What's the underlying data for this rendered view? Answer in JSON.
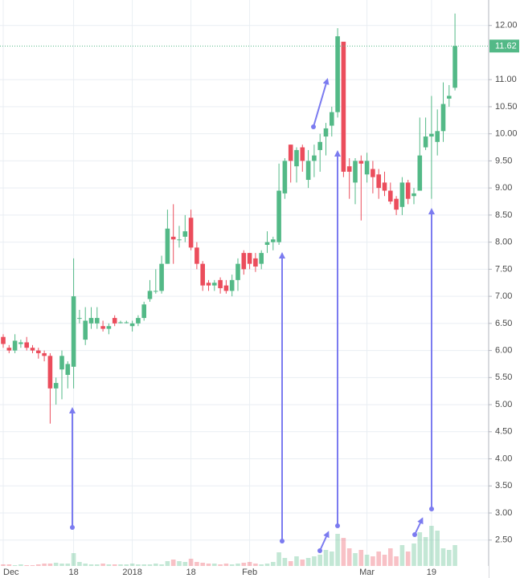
{
  "chart_data": {
    "type": "candlestick",
    "categories": [
      "Dec",
      null,
      null,
      null,
      null,
      null,
      null,
      null,
      null,
      null,
      null,
      null,
      "18",
      null,
      null,
      null,
      null,
      null,
      null,
      null,
      null,
      null,
      "2018",
      null,
      null,
      null,
      null,
      null,
      null,
      null,
      null,
      null,
      "18",
      null,
      null,
      null,
      null,
      null,
      null,
      null,
      null,
      null,
      "Feb",
      null,
      null,
      null,
      null,
      null,
      null,
      null,
      null,
      null,
      null,
      null,
      null,
      null,
      null,
      null,
      null,
      null,
      null,
      null,
      "Mar",
      null,
      null,
      null,
      null,
      null,
      null,
      null,
      null,
      null,
      null,
      "19",
      null,
      null,
      null,
      null
    ],
    "open": [
      6.25,
      6.05,
      6.0,
      6.12,
      6.15,
      6.05,
      6.0,
      5.95,
      5.9,
      5.3,
      5.65,
      5.55,
      5.7,
      6.6,
      6.2,
      6.5,
      6.5,
      6.45,
      6.4,
      6.6,
      6.52,
      6.52,
      6.45,
      6.5,
      6.6,
      6.95,
      7.1,
      7.1,
      7.6,
      8.1,
      8.05,
      8.1,
      8.45,
      7.9,
      7.6,
      7.25,
      7.2,
      7.3,
      7.2,
      7.1,
      7.3,
      7.8,
      7.8,
      7.7,
      7.6,
      7.95,
      8.0,
      8.0,
      8.9,
      9.8,
      9.4,
      9.75,
      9.15,
      9.5,
      9.7,
      9.95,
      10.15,
      10.4,
      11.7,
      9.4,
      9.1,
      9.5,
      9.25,
      9.35,
      9.25,
      9.1,
      8.95,
      8.8,
      8.65,
      9.1,
      8.85,
      8.95,
      9.75,
      9.95,
      9.85,
      10.05,
      10.65,
      10.85
    ],
    "high": [
      6.3,
      6.1,
      6.3,
      6.2,
      6.25,
      6.1,
      6.05,
      6.0,
      5.95,
      5.5,
      6.0,
      5.8,
      7.7,
      6.75,
      6.8,
      6.8,
      6.8,
      6.55,
      6.5,
      6.65,
      6.55,
      6.55,
      6.55,
      6.65,
      6.9,
      7.3,
      7.5,
      7.75,
      8.6,
      8.7,
      8.3,
      8.5,
      8.6,
      8.0,
      7.65,
      7.3,
      7.3,
      7.35,
      7.3,
      7.4,
      7.7,
      7.85,
      7.8,
      7.8,
      7.85,
      8.2,
      8.1,
      9.45,
      9.55,
      9.8,
      9.75,
      9.8,
      9.7,
      9.8,
      10.0,
      10.2,
      10.5,
      11.95,
      11.7,
      9.55,
      9.55,
      9.6,
      9.65,
      9.5,
      9.35,
      9.3,
      9.1,
      8.85,
      9.2,
      9.15,
      9.0,
      10.3,
      10.3,
      10.7,
      10.45,
      10.95,
      10.9,
      12.22
    ],
    "low": [
      6.05,
      5.95,
      5.95,
      6.05,
      6.0,
      5.95,
      5.85,
      5.8,
      4.65,
      5.0,
      5.1,
      5.3,
      5.3,
      6.5,
      6.1,
      6.4,
      6.4,
      6.35,
      6.3,
      6.45,
      6.5,
      6.5,
      6.35,
      6.45,
      6.55,
      6.9,
      7.05,
      7.05,
      7.6,
      7.6,
      7.9,
      8.0,
      7.85,
      7.5,
      7.1,
      7.1,
      7.1,
      7.05,
      7.05,
      7.0,
      7.1,
      7.4,
      7.5,
      7.45,
      7.5,
      7.8,
      7.85,
      7.95,
      8.8,
      9.1,
      9.1,
      9.3,
      9.0,
      9.2,
      9.3,
      9.6,
      9.95,
      10.3,
      9.2,
      8.8,
      8.7,
      8.4,
      9.1,
      8.9,
      8.8,
      8.85,
      8.7,
      8.5,
      8.5,
      8.7,
      8.7,
      8.95,
      9.7,
      8.8,
      9.6,
      9.85,
      10.5,
      10.8
    ],
    "close": [
      6.12,
      6.0,
      6.18,
      6.15,
      6.05,
      6.0,
      5.95,
      5.9,
      5.3,
      5.4,
      5.9,
      5.75,
      7.0,
      6.6,
      6.55,
      6.6,
      6.6,
      6.4,
      6.45,
      6.5,
      6.52,
      6.52,
      6.5,
      6.6,
      6.85,
      7.1,
      7.1,
      7.6,
      8.25,
      8.05,
      8.05,
      8.2,
      7.9,
      7.6,
      7.2,
      7.2,
      7.25,
      7.15,
      7.1,
      7.3,
      7.6,
      7.5,
      7.6,
      7.55,
      7.8,
      8.0,
      8.05,
      8.95,
      9.5,
      9.5,
      9.7,
      9.5,
      9.5,
      9.6,
      9.85,
      10.1,
      10.4,
      11.8,
      9.3,
      9.3,
      9.5,
      9.45,
      9.5,
      9.2,
      9.0,
      8.95,
      8.75,
      8.6,
      9.1,
      8.8,
      8.9,
      9.6,
      9.95,
      10.0,
      10.05,
      10.55,
      10.7,
      11.62
    ],
    "volume": [
      2,
      2,
      1,
      2,
      1,
      1,
      2,
      3,
      3,
      4,
      3,
      3,
      16,
      5,
      3,
      2,
      2,
      3,
      2,
      2,
      2,
      2,
      3,
      2,
      2,
      2,
      3,
      2,
      6,
      8,
      6,
      5,
      9,
      5,
      4,
      3,
      3,
      2,
      3,
      2,
      3,
      4,
      5,
      3,
      2,
      3,
      5,
      17,
      10,
      6,
      12,
      8,
      10,
      12,
      14,
      20,
      18,
      40,
      35,
      22,
      16,
      20,
      14,
      12,
      18,
      14,
      22,
      12,
      26,
      18,
      28,
      42,
      36,
      50,
      44,
      22,
      20,
      26
    ],
    "volume_ylim": [
      0,
      705
    ],
    "up_color": "#53b987",
    "down_color": "#eb4d5c",
    "ylim": [
      1.8,
      12.47
    ],
    "yticks": [
      {
        "value": 2.5,
        "label": "2.50"
      },
      {
        "value": 3,
        "label": "3.00"
      },
      {
        "value": 3.5,
        "label": "3.50"
      },
      {
        "value": 4,
        "label": "4.00"
      },
      {
        "value": 4.5,
        "label": "4.50"
      },
      {
        "value": 5,
        "label": "5.00"
      },
      {
        "value": 5.5,
        "label": "5.50"
      },
      {
        "value": 6,
        "label": "6.00"
      },
      {
        "value": 6.5,
        "label": "6.50"
      },
      {
        "value": 7,
        "label": "7.00"
      },
      {
        "value": 7.5,
        "label": "7.50"
      },
      {
        "value": 8,
        "label": "8.00"
      },
      {
        "value": 8.5,
        "label": "8.50"
      },
      {
        "value": 9,
        "label": "9.00"
      },
      {
        "value": 9.5,
        "label": "9.50"
      },
      {
        "value": 10,
        "label": "10.00"
      },
      {
        "value": 10.5,
        "label": "10.50"
      },
      {
        "value": 11,
        "label": "11.00"
      },
      {
        "value": 12,
        "label": "12.00"
      }
    ],
    "last_price": 11.62,
    "grid": true
  }
}
